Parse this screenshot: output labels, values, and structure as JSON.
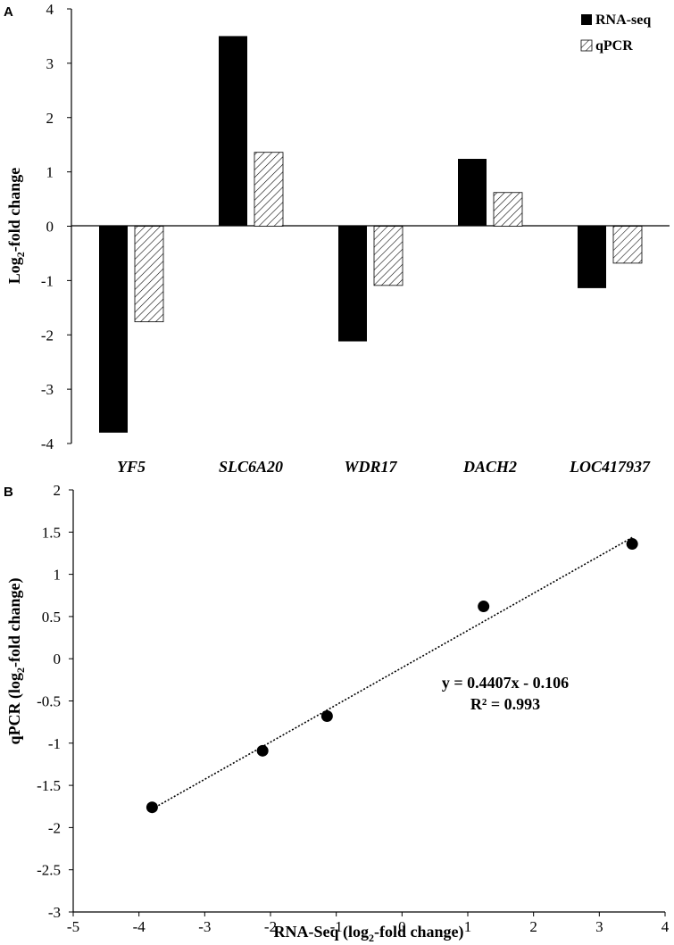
{
  "chart_data": [
    {
      "panel": "A",
      "type": "bar",
      "categories": [
        "YF5",
        "SLC6A20",
        "WDR17",
        "DACH2",
        "LOC417937"
      ],
      "series": [
        {
          "name": "RNA-seq",
          "values": [
            -3.8,
            3.5,
            -2.12,
            1.24,
            -1.14
          ],
          "color": "#000000"
        },
        {
          "name": "qPCR",
          "values": [
            -1.76,
            1.36,
            -1.09,
            0.62,
            -0.68
          ],
          "color": "hatched"
        }
      ],
      "ylabel_main": "Log",
      "ylabel_sub": "2",
      "ylabel_rest": "-fold change",
      "ylim": [
        -4,
        4
      ],
      "yticks": [
        4,
        3,
        2,
        1,
        0,
        -1,
        -2,
        -3,
        -4
      ],
      "legend": "top-right"
    },
    {
      "panel": "B",
      "type": "scatter",
      "x": [
        -3.8,
        3.5,
        -2.12,
        1.24,
        -1.14
      ],
      "y": [
        -1.76,
        1.36,
        -1.09,
        0.62,
        -0.68
      ],
      "trendline": {
        "slope": 0.4407,
        "intercept": -0.106,
        "x_range": [
          -3.8,
          3.5
        ]
      },
      "equation": "y = 0.4407x - 0.106",
      "r2": "R² = 0.993",
      "xlabel_main": "RNA-Seq (log",
      "xlabel_sub": "2",
      "xlabel_rest": "-fold change)",
      "ylabel_main": "qPCR (log",
      "ylabel_sub": "2",
      "ylabel_rest": "-fold change)",
      "xlim": [
        -5,
        4
      ],
      "ylim": [
        -3,
        2
      ],
      "xticks": [
        -5,
        -4,
        -3,
        -2,
        -1,
        0,
        1,
        2,
        3,
        4
      ],
      "yticks": [
        2,
        1.5,
        1,
        0.5,
        0,
        -0.5,
        -1,
        -1.5,
        -2,
        -2.5,
        -3
      ]
    }
  ]
}
